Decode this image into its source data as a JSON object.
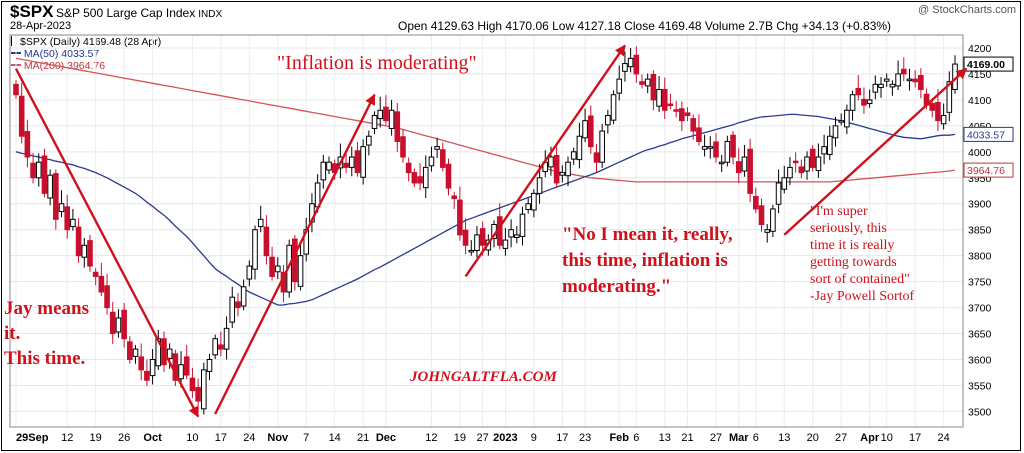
{
  "header": {
    "symbol": "$SPX",
    "name": "S&P 500 Large Cap Index",
    "exchange": "INDX",
    "date": "28-Apr-2023",
    "ohlc_text": "Open 4129.63  High 4170.06  Low 4127.18  Close 4169.48  Volume 2.7B  Chg +34.13 (+0.83%)",
    "credit": "@ StockCharts.com"
  },
  "legend": {
    "main": "$SPX (Daily) 4169.48 (28 Apr)",
    "ma50_label": "MA(50)",
    "ma50_value": "4033.57",
    "ma200_label": "MA(200)",
    "ma200_value": "3964.76"
  },
  "annotations": {
    "inflation": "\"Inflation is moderating\"",
    "jay": "Jay means\nit.\nThis time.",
    "no_i_mean": "\"No I mean it, really,\nthis time, inflation is\nmoderating.\"",
    "super_serious": "\"I'm super\nseriously, this\ntime it is really\ngetting towards\nsort of contained\"\n-Jay Powell Sortof",
    "watermark": "JOHNGALTFLA.COM"
  },
  "colors": {
    "up": "#000000",
    "down": "#c8102e",
    "ma50": "#2b3990",
    "ma200": "#d0565c",
    "arrow": "#d0101a"
  },
  "chart_data": {
    "type": "candlestick",
    "title": "$SPX S&P 500 Large Cap Index",
    "ylim": [
      3470,
      4225
    ],
    "y_ticks": [
      3500,
      3550,
      3600,
      3650,
      3700,
      3750,
      3800,
      3850,
      3900,
      3950,
      4000,
      4050,
      4100,
      4150,
      4200
    ],
    "x_labels": [
      {
        "i": 0,
        "label": "29Sep"
      },
      {
        "i": 9,
        "label": "12"
      },
      {
        "i": 14,
        "label": "19"
      },
      {
        "i": 19,
        "label": "26"
      },
      {
        "i": 24,
        "label": "Oct"
      },
      {
        "i": 31,
        "label": "10"
      },
      {
        "i": 36,
        "label": "17"
      },
      {
        "i": 41,
        "label": "24"
      },
      {
        "i": 46,
        "label": "Nov"
      },
      {
        "i": 51,
        "label": "7"
      },
      {
        "i": 56,
        "label": "14"
      },
      {
        "i": 61,
        "label": "21"
      },
      {
        "i": 65,
        "label": "Dec"
      },
      {
        "i": 73,
        "label": "12"
      },
      {
        "i": 78,
        "label": "19"
      },
      {
        "i": 82,
        "label": "27"
      },
      {
        "i": 86,
        "label": "2023"
      },
      {
        "i": 91,
        "label": "9"
      },
      {
        "i": 96,
        "label": "17"
      },
      {
        "i": 100,
        "label": "23"
      },
      {
        "i": 106,
        "label": "Feb"
      },
      {
        "i": 109,
        "label": "6"
      },
      {
        "i": 114,
        "label": "13"
      },
      {
        "i": 118,
        "label": "21"
      },
      {
        "i": 123,
        "label": "27"
      },
      {
        "i": 127,
        "label": "Mar"
      },
      {
        "i": 130,
        "label": "6"
      },
      {
        "i": 135,
        "label": "13"
      },
      {
        "i": 140,
        "label": "20"
      },
      {
        "i": 145,
        "label": "27"
      },
      {
        "i": 150,
        "label": "Apr"
      },
      {
        "i": 153,
        "label": "10"
      },
      {
        "i": 158,
        "label": "17"
      },
      {
        "i": 163,
        "label": "24"
      }
    ],
    "close": [
      4110,
      4030,
      3990,
      3950,
      3980,
      3920,
      3955,
      3870,
      3900,
      3850,
      3870,
      3800,
      3820,
      3780,
      3760,
      3730,
      3700,
      3650,
      3680,
      3640,
      3600,
      3620,
      3580,
      3560,
      3600,
      3640,
      3590,
      3620,
      3560,
      3590,
      3570,
      3540,
      3520,
      3580,
      3600,
      3640,
      3620,
      3660,
      3720,
      3700,
      3740,
      3780,
      3850,
      3870,
      3800,
      3760,
      3780,
      3730,
      3820,
      3750,
      3800,
      3850,
      3900,
      3940,
      3980,
      3980,
      3960,
      3990,
      3970,
      3990,
      3960,
      4010,
      4030,
      4070,
      4080,
      4060,
      4080,
      4020,
      3990,
      3960,
      3940,
      3940,
      3970,
      3990,
      4010,
      3970,
      3930,
      3910,
      3840,
      3820,
      3810,
      3840,
      3820,
      3830,
      3860,
      3820,
      3830,
      3850,
      3840,
      3880,
      3900,
      3920,
      3950,
      3980,
      3990,
      3940,
      3960,
      3980,
      4000,
      4030,
      4060,
      4010,
      3980,
      4040,
      4070,
      4110,
      4140,
      4170,
      4180,
      4150,
      4130,
      4140,
      4100,
      4120,
      4080,
      4090,
      4080,
      4060,
      4070,
      4040,
      4020,
      4010,
      4010,
      3990,
      3980,
      4020,
      3990,
      3960,
      3990,
      3920,
      3890,
      3860,
      3850,
      3890,
      3940,
      3950,
      3970,
      3980,
      3960,
      3990,
      3970,
      3990,
      4010,
      4030,
      4050,
      4060,
      4080,
      4110,
      4110,
      4090,
      4100,
      4130,
      4130,
      4140,
      4130,
      4150,
      4150,
      4140,
      4135,
      4120,
      4090,
      4080,
      4060,
      4070,
      4135,
      4169
    ],
    "ma50": [
      4000,
      3997,
      3995,
      3992,
      3990,
      3987,
      3985,
      3982,
      3980,
      3977,
      3975,
      3971,
      3968,
      3964,
      3960,
      3955,
      3950,
      3944,
      3938,
      3932,
      3926,
      3920,
      3912,
      3903,
      3895,
      3886,
      3878,
      3868,
      3857,
      3847,
      3837,
      3825,
      3812,
      3800,
      3787,
      3775,
      3767,
      3760,
      3752,
      3745,
      3737,
      3730,
      3725,
      3720,
      3715,
      3710,
      3705,
      3705,
      3707,
      3708,
      3710,
      3712,
      3715,
      3720,
      3725,
      3730,
      3735,
      3740,
      3745,
      3750,
      3755,
      3761,
      3767,
      3773,
      3778,
      3784,
      3790,
      3796,
      3802,
      3808,
      3814,
      3820,
      3826,
      3832,
      3838,
      3844,
      3850,
      3856,
      3862,
      3868,
      3872,
      3876,
      3880,
      3884,
      3888,
      3892,
      3896,
      3900,
      3904,
      3908,
      3912,
      3916,
      3920,
      3924,
      3928,
      3932,
      3936,
      3940,
      3944,
      3948,
      3952,
      3956,
      3960,
      3965,
      3970,
      3975,
      3980,
      3985,
      3990,
      3995,
      4000,
      4004,
      4007,
      4011,
      4014,
      4018,
      4021,
      4025,
      4028,
      4031,
      4034,
      4037,
      4040,
      4043,
      4046,
      4049,
      4052,
      4056,
      4059,
      4062,
      4065,
      4067,
      4068,
      4069,
      4070,
      4071,
      4072,
      4072,
      4071,
      4070,
      4069,
      4068,
      4066,
      4064,
      4062,
      4060,
      4057,
      4054,
      4051,
      4048,
      4045,
      4042,
      4039,
      4036,
      4033,
      4030,
      4028,
      4027,
      4026,
      4025,
      4027,
      4029,
      4031,
      4032,
      4032,
      4033.57
    ],
    "ma200": [
      4180,
      4178,
      4176,
      4174,
      4172,
      4170,
      4168,
      4166,
      4164,
      4162,
      4160,
      4158,
      4156,
      4154,
      4152,
      4150,
      4148,
      4146,
      4144,
      4142,
      4140,
      4138,
      4136,
      4134,
      4132,
      4130,
      4128,
      4126,
      4124,
      4122,
      4120,
      4118,
      4116,
      4114,
      4112,
      4110,
      4108,
      4106,
      4104,
      4102,
      4100,
      4098,
      4096,
      4094,
      4092,
      4090,
      4088,
      4086,
      4084,
      4082,
      4080,
      4078,
      4076,
      4074,
      4072,
      4070,
      4068,
      4066,
      4064,
      4062,
      4060,
      4058,
      4056,
      4054,
      4052,
      4050,
      4048,
      4046,
      4043,
      4040,
      4037,
      4034,
      4031,
      4028,
      4025,
      4022,
      4019,
      4016,
      4013,
      4010,
      4007,
      4004,
      4001,
      3998,
      3995,
      3992,
      3989,
      3986,
      3983,
      3980,
      3977,
      3974,
      3971,
      3968,
      3965,
      3962,
      3960,
      3958,
      3956,
      3954,
      3952,
      3950,
      3949,
      3948,
      3947,
      3946,
      3945,
      3944,
      3943,
      3942,
      3942,
      3942,
      3942,
      3942,
      3942,
      3942,
      3942,
      3942,
      3942,
      3942,
      3942,
      3942,
      3942,
      3942,
      3942,
      3942,
      3942,
      3942,
      3942,
      3942,
      3942,
      3942,
      3942,
      3942,
      3942,
      3942,
      3942,
      3942,
      3942,
      3942,
      3942,
      3942,
      3942,
      3942,
      3943,
      3944,
      3945,
      3946,
      3947,
      3948,
      3949,
      3950,
      3951,
      3952,
      3953,
      3954,
      3955,
      3956,
      3957,
      3958,
      3959,
      3960,
      3961,
      3962,
      3963,
      3964.76
    ]
  }
}
